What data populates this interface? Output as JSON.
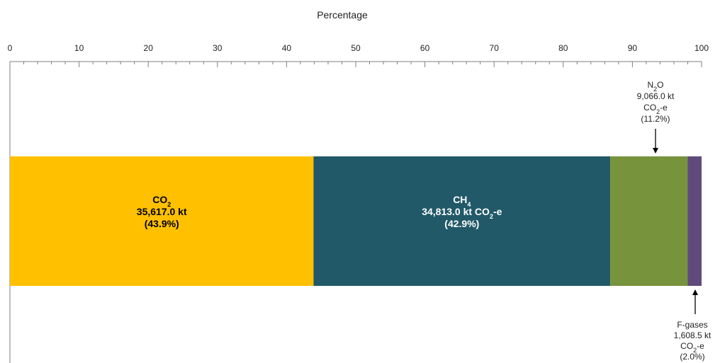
{
  "chart_data": {
    "type": "bar",
    "orientation": "horizontal",
    "stacked": true,
    "xlabel": "Percentage",
    "xlim": [
      0,
      100
    ],
    "x_ticks": [
      "0",
      "10",
      "20",
      "30",
      "40",
      "50",
      "60",
      "70",
      "80",
      "90",
      "100"
    ],
    "categories": [
      "CO2",
      "CH4",
      "N2O",
      "F-gases"
    ],
    "values": [
      43.9,
      42.9,
      11.2,
      2.0
    ],
    "series": [
      {
        "gas": "CO2",
        "gas_base": "CO",
        "gas_sub": "2",
        "value_line": "35,617.0 kt",
        "value_sub_prefix": "",
        "value_sub": "",
        "value_suffix": "",
        "percent_label": "(43.9%)",
        "percent": 43.9,
        "color": "#FFC000",
        "text_color": "#000000"
      },
      {
        "gas": "CH4",
        "gas_base": "CH",
        "gas_sub": "4",
        "value_line": "34,813.0 kt CO",
        "value_sub": "2",
        "value_suffix": "-e",
        "percent_label": "(42.9%)",
        "percent": 42.9,
        "color": "#215968",
        "text_color": "#ffffff"
      },
      {
        "gas": "N2O",
        "gas_base": "N",
        "gas_sub": "2",
        "gas_after": "O",
        "value_line": "9,066.0 kt",
        "unit_base": "CO",
        "unit_sub": "2",
        "unit_suffix": "-e",
        "percent_label": "(11.2%)",
        "percent": 11.2,
        "color": "#77933C"
      },
      {
        "gas": "F-gases",
        "value_line": "1,608.5 kt",
        "unit_base": "CO",
        "unit_sub": "2",
        "unit_suffix": "-e",
        "percent_label": "(2.0%)",
        "percent": 2.0,
        "color": "#604A7B"
      }
    ],
    "grid": false
  }
}
